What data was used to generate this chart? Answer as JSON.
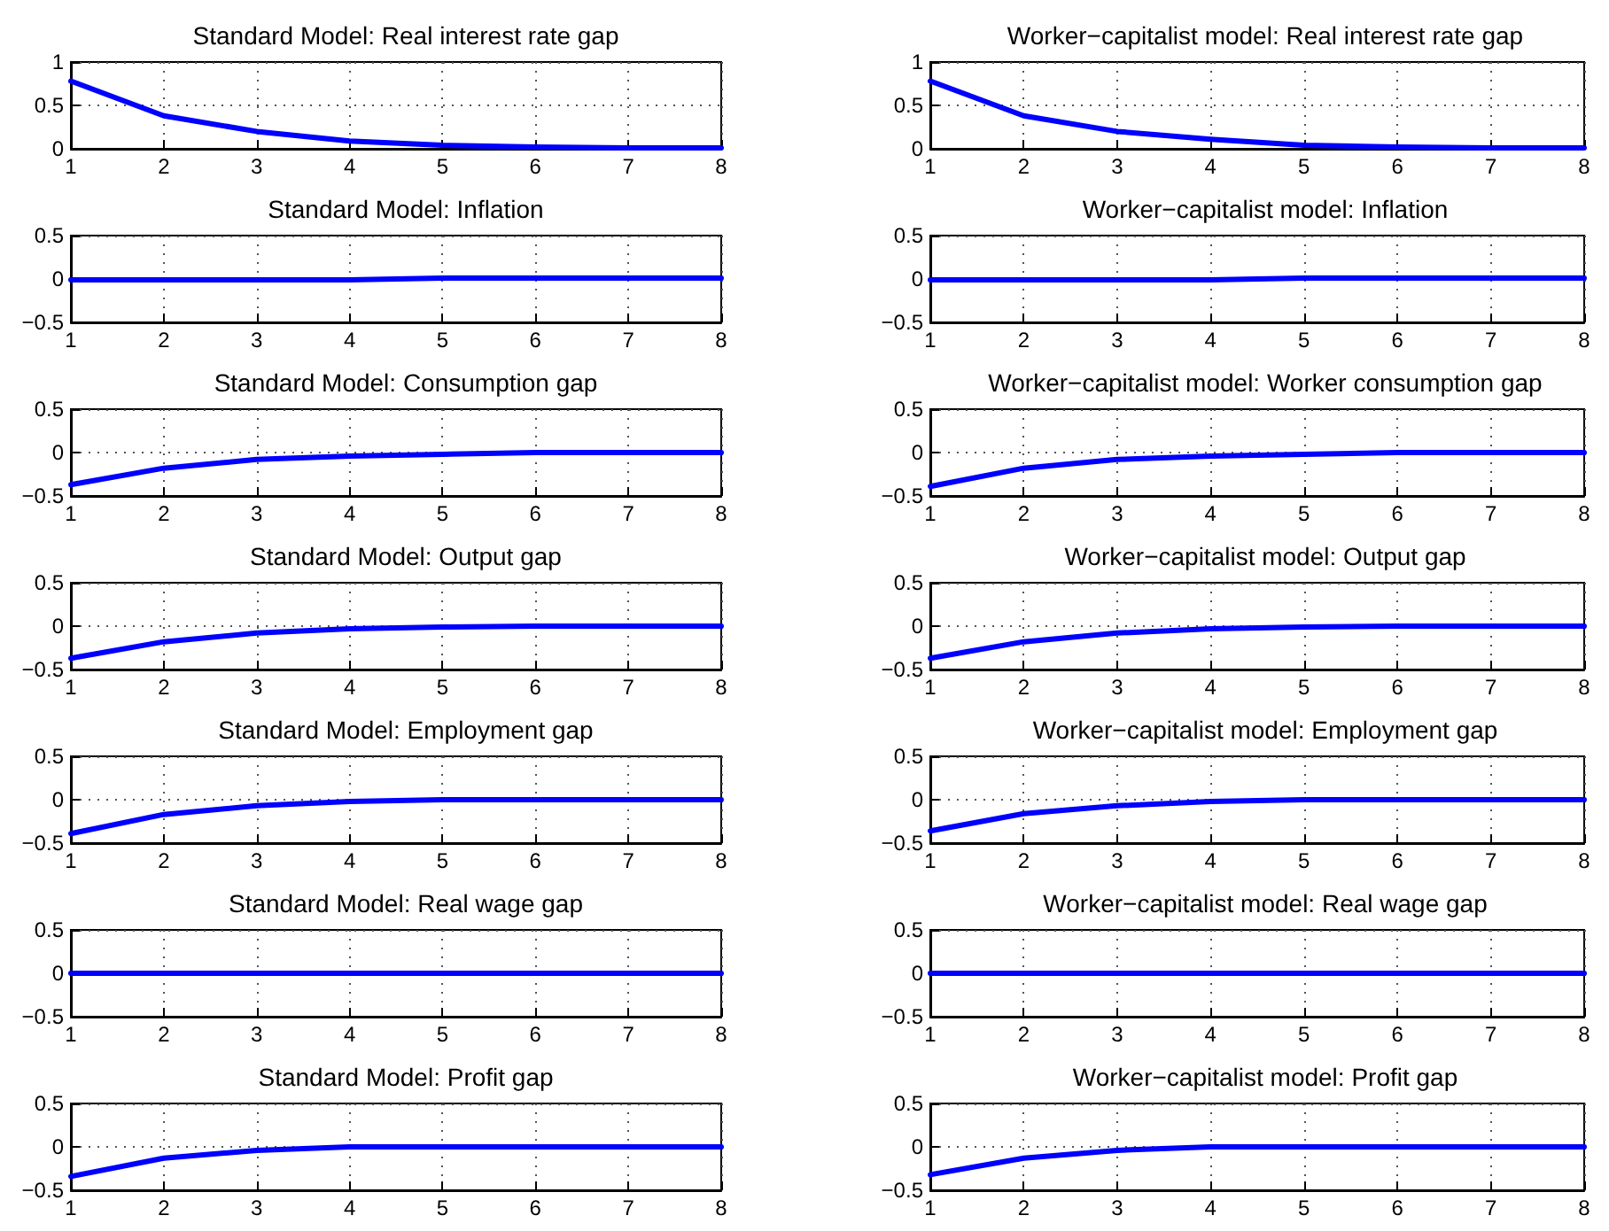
{
  "chart_data": [
    {
      "type": "line",
      "title": "Standard Model: Real interest rate gap",
      "x": [
        1,
        2,
        3,
        4,
        5,
        6,
        7,
        8
      ],
      "values": [
        0.78,
        0.38,
        0.2,
        0.09,
        0.04,
        0.02,
        0.01,
        0.01
      ],
      "color": "#0000ff",
      "xlim": [
        1,
        8
      ],
      "xticks": [
        1,
        2,
        3,
        4,
        5,
        6,
        7,
        8
      ],
      "ylim": [
        0,
        1
      ],
      "yticks": [
        0,
        0.5,
        1
      ],
      "grid": true,
      "marker": "none",
      "line_style": "solid"
    },
    {
      "type": "line",
      "title": "Worker−capitalist model: Real interest rate gap",
      "x": [
        1,
        2,
        3,
        4,
        5,
        6,
        7,
        8
      ],
      "values": [
        0.78,
        0.38,
        0.2,
        0.11,
        0.04,
        0.02,
        0.01,
        0.01
      ],
      "color": "#0000ff",
      "xlim": [
        1,
        8
      ],
      "xticks": [
        1,
        2,
        3,
        4,
        5,
        6,
        7,
        8
      ],
      "ylim": [
        0,
        1
      ],
      "yticks": [
        0,
        0.5,
        1
      ],
      "grid": true,
      "marker": "none",
      "line_style": "solid"
    },
    {
      "type": "line",
      "title": "Standard Model: Inflation",
      "x": [
        1,
        2,
        3,
        4,
        5,
        6,
        7,
        8
      ],
      "values": [
        -0.01,
        -0.01,
        -0.01,
        -0.01,
        0.01,
        0.01,
        0.01,
        0.01
      ],
      "color": "#0000ff",
      "xlim": [
        1,
        8
      ],
      "xticks": [
        1,
        2,
        3,
        4,
        5,
        6,
        7,
        8
      ],
      "ylim": [
        -0.5,
        0.5
      ],
      "yticks": [
        -0.5,
        0,
        0.5
      ],
      "grid": true,
      "marker": "none",
      "line_style": "solid"
    },
    {
      "type": "line",
      "title": "Worker−capitalist model: Inflation",
      "x": [
        1,
        2,
        3,
        4,
        5,
        6,
        7,
        8
      ],
      "values": [
        -0.01,
        -0.01,
        -0.01,
        -0.01,
        0.01,
        0.01,
        0.01,
        0.01
      ],
      "color": "#0000ff",
      "xlim": [
        1,
        8
      ],
      "xticks": [
        1,
        2,
        3,
        4,
        5,
        6,
        7,
        8
      ],
      "ylim": [
        -0.5,
        0.5
      ],
      "yticks": [
        -0.5,
        0,
        0.5
      ],
      "grid": true,
      "marker": "none",
      "line_style": "solid"
    },
    {
      "type": "line",
      "title": "Standard Model: Consumption gap",
      "x": [
        1,
        2,
        3,
        4,
        5,
        6,
        7,
        8
      ],
      "values": [
        -0.37,
        -0.18,
        -0.08,
        -0.04,
        -0.02,
        0,
        0,
        0
      ],
      "color": "#0000ff",
      "xlim": [
        1,
        8
      ],
      "xticks": [
        1,
        2,
        3,
        4,
        5,
        6,
        7,
        8
      ],
      "ylim": [
        -0.5,
        0.5
      ],
      "yticks": [
        -0.5,
        0,
        0.5
      ],
      "grid": true,
      "marker": "none",
      "line_style": "solid"
    },
    {
      "type": "line",
      "title": "Worker−capitalist model: Worker consumption gap",
      "x": [
        1,
        2,
        3,
        4,
        5,
        6,
        7,
        8
      ],
      "values": [
        -0.39,
        -0.18,
        -0.08,
        -0.04,
        -0.02,
        0,
        0,
        0
      ],
      "color": "#0000ff",
      "xlim": [
        1,
        8
      ],
      "xticks": [
        1,
        2,
        3,
        4,
        5,
        6,
        7,
        8
      ],
      "ylim": [
        -0.5,
        0.5
      ],
      "yticks": [
        -0.5,
        0,
        0.5
      ],
      "grid": true,
      "marker": "none",
      "line_style": "solid"
    },
    {
      "type": "line",
      "title": "Standard Model: Output gap",
      "x": [
        1,
        2,
        3,
        4,
        5,
        6,
        7,
        8
      ],
      "values": [
        -0.37,
        -0.18,
        -0.08,
        -0.03,
        -0.01,
        0,
        0,
        0
      ],
      "color": "#0000ff",
      "xlim": [
        1,
        8
      ],
      "xticks": [
        1,
        2,
        3,
        4,
        5,
        6,
        7,
        8
      ],
      "ylim": [
        -0.5,
        0.5
      ],
      "yticks": [
        -0.5,
        0,
        0.5
      ],
      "grid": true,
      "marker": "none",
      "line_style": "solid"
    },
    {
      "type": "line",
      "title": "Worker−capitalist model: Output gap",
      "x": [
        1,
        2,
        3,
        4,
        5,
        6,
        7,
        8
      ],
      "values": [
        -0.37,
        -0.18,
        -0.08,
        -0.03,
        -0.01,
        0,
        0,
        0
      ],
      "color": "#0000ff",
      "xlim": [
        1,
        8
      ],
      "xticks": [
        1,
        2,
        3,
        4,
        5,
        6,
        7,
        8
      ],
      "ylim": [
        -0.5,
        0.5
      ],
      "yticks": [
        -0.5,
        0,
        0.5
      ],
      "grid": true,
      "marker": "none",
      "line_style": "solid"
    },
    {
      "type": "line",
      "title": "Standard Model: Employment gap",
      "x": [
        1,
        2,
        3,
        4,
        5,
        6,
        7,
        8
      ],
      "values": [
        -0.39,
        -0.17,
        -0.07,
        -0.02,
        0,
        0,
        0,
        0
      ],
      "color": "#0000ff",
      "xlim": [
        1,
        8
      ],
      "xticks": [
        1,
        2,
        3,
        4,
        5,
        6,
        7,
        8
      ],
      "ylim": [
        -0.5,
        0.5
      ],
      "yticks": [
        -0.5,
        0,
        0.5
      ],
      "grid": true,
      "marker": "none",
      "line_style": "solid"
    },
    {
      "type": "line",
      "title": "Worker−capitalist model: Employment gap",
      "x": [
        1,
        2,
        3,
        4,
        5,
        6,
        7,
        8
      ],
      "values": [
        -0.36,
        -0.16,
        -0.07,
        -0.02,
        0,
        0,
        0,
        0
      ],
      "color": "#0000ff",
      "xlim": [
        1,
        8
      ],
      "xticks": [
        1,
        2,
        3,
        4,
        5,
        6,
        7,
        8
      ],
      "ylim": [
        -0.5,
        0.5
      ],
      "yticks": [
        -0.5,
        0,
        0.5
      ],
      "grid": true,
      "marker": "none",
      "line_style": "solid"
    },
    {
      "type": "line",
      "title": "Standard Model: Real wage gap",
      "x": [
        1,
        2,
        3,
        4,
        5,
        6,
        7,
        8
      ],
      "values": [
        0,
        0,
        0,
        0,
        0,
        0,
        0,
        0
      ],
      "color": "#0000ff",
      "xlim": [
        1,
        8
      ],
      "xticks": [
        1,
        2,
        3,
        4,
        5,
        6,
        7,
        8
      ],
      "ylim": [
        -0.5,
        0.5
      ],
      "yticks": [
        -0.5,
        0,
        0.5
      ],
      "grid": true,
      "marker": "none",
      "line_style": "solid"
    },
    {
      "type": "line",
      "title": "Worker−capitalist model: Real wage gap",
      "x": [
        1,
        2,
        3,
        4,
        5,
        6,
        7,
        8
      ],
      "values": [
        0,
        0,
        0,
        0,
        0,
        0,
        0,
        0
      ],
      "color": "#0000ff",
      "xlim": [
        1,
        8
      ],
      "xticks": [
        1,
        2,
        3,
        4,
        5,
        6,
        7,
        8
      ],
      "ylim": [
        -0.5,
        0.5
      ],
      "yticks": [
        -0.5,
        0,
        0.5
      ],
      "grid": true,
      "marker": "none",
      "line_style": "solid"
    },
    {
      "type": "line",
      "title": "Standard Model: Profit gap",
      "x": [
        1,
        2,
        3,
        4,
        5,
        6,
        7,
        8
      ],
      "values": [
        -0.34,
        -0.13,
        -0.04,
        0,
        0,
        0,
        0,
        0
      ],
      "color": "#0000ff",
      "xlim": [
        1,
        8
      ],
      "xticks": [
        1,
        2,
        3,
        4,
        5,
        6,
        7,
        8
      ],
      "ylim": [
        -0.5,
        0.5
      ],
      "yticks": [
        -0.5,
        0,
        0.5
      ],
      "grid": true,
      "marker": "none",
      "line_style": "solid"
    },
    {
      "type": "line",
      "title": "Worker−capitalist model: Profit gap",
      "x": [
        1,
        2,
        3,
        4,
        5,
        6,
        7,
        8
      ],
      "values": [
        -0.32,
        -0.13,
        -0.04,
        0,
        0,
        0,
        0,
        0
      ],
      "color": "#0000ff",
      "xlim": [
        1,
        8
      ],
      "xticks": [
        1,
        2,
        3,
        4,
        5,
        6,
        7,
        8
      ],
      "ylim": [
        -0.5,
        0.5
      ],
      "yticks": [
        -0.5,
        0,
        0.5
      ],
      "grid": true,
      "marker": "none",
      "line_style": "solid"
    }
  ]
}
